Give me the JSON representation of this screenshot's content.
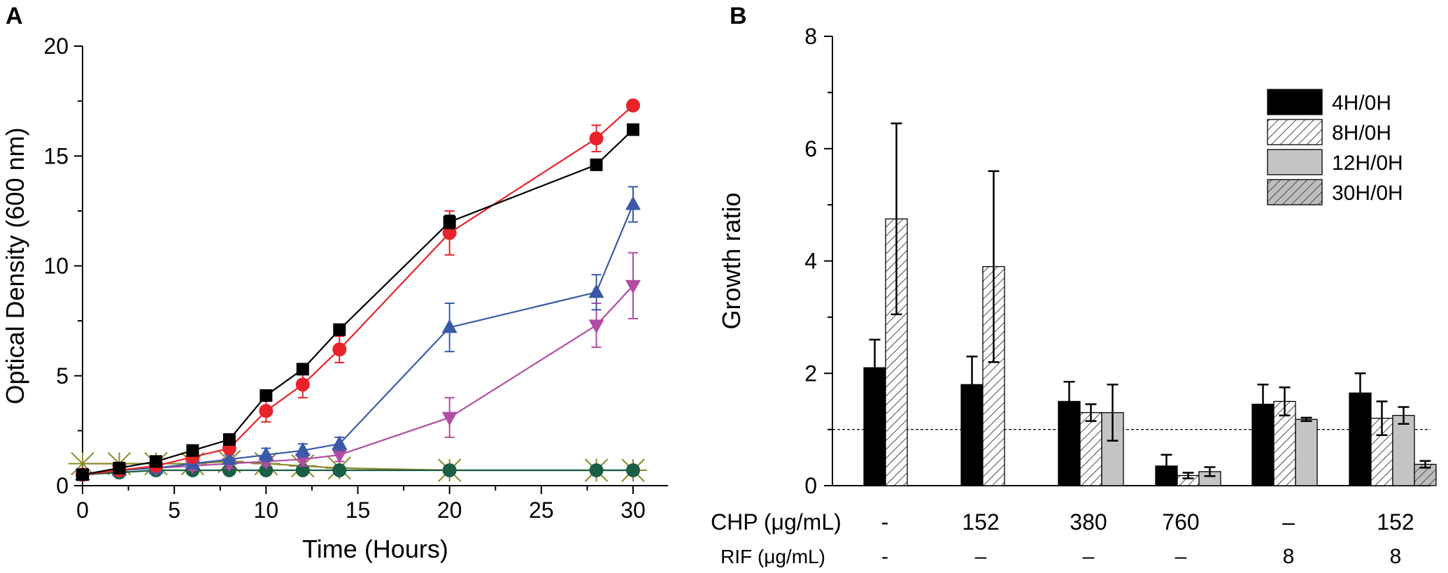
{
  "chart_data": [
    {
      "panel": "A",
      "type": "line",
      "xlabel": "Time (Hours)",
      "ylabel": "Optical Density (600 nm)",
      "xlim": [
        0,
        32
      ],
      "ylim": [
        0,
        20
      ],
      "xticks": [
        0,
        5,
        10,
        15,
        20,
        25,
        30
      ],
      "yticks": [
        0,
        5,
        10,
        15,
        20
      ],
      "series": [
        {
          "name": "black-squares",
          "color": "#000000",
          "marker": "square",
          "x": [
            0,
            2,
            4,
            6,
            8,
            10,
            12,
            14,
            20,
            28,
            30
          ],
          "y": [
            0.5,
            0.8,
            1.1,
            1.6,
            2.1,
            4.1,
            5.3,
            7.1,
            12.0,
            14.6,
            16.2
          ],
          "err": [
            0,
            0,
            0,
            0,
            0,
            0,
            0,
            0,
            0.3,
            0,
            0
          ]
        },
        {
          "name": "red-circles",
          "color": "#e8232a",
          "marker": "circle",
          "x": [
            0,
            2,
            4,
            6,
            8,
            10,
            12,
            14,
            20,
            28,
            30
          ],
          "y": [
            0.5,
            0.7,
            0.9,
            1.3,
            1.7,
            3.4,
            4.6,
            6.2,
            11.5,
            15.8,
            17.3
          ],
          "err": [
            0,
            0,
            0,
            0.2,
            0.2,
            0.5,
            0.6,
            0.6,
            1.0,
            0.6,
            0
          ]
        },
        {
          "name": "blue-up-triangles",
          "color": "#3a5aa8",
          "marker": "triangle-up",
          "x": [
            0,
            2,
            4,
            6,
            8,
            10,
            12,
            14,
            20,
            28,
            30
          ],
          "y": [
            0.5,
            0.7,
            0.8,
            1.0,
            1.2,
            1.4,
            1.6,
            1.9,
            7.2,
            8.8,
            12.8
          ],
          "err": [
            0,
            0,
            0,
            0.2,
            0.2,
            0.3,
            0.3,
            0.3,
            1.1,
            0.8,
            0.8
          ]
        },
        {
          "name": "magenta-down-triangles",
          "color": "#b24ca5",
          "marker": "triangle-down",
          "x": [
            0,
            2,
            4,
            6,
            8,
            10,
            12,
            14,
            20,
            28,
            30
          ],
          "y": [
            0.5,
            0.7,
            0.8,
            0.9,
            1.0,
            1.1,
            1.2,
            1.4,
            3.1,
            7.3,
            9.1
          ],
          "err": [
            0,
            0,
            0,
            0.2,
            0.2,
            0.2,
            0.3,
            0.3,
            0.9,
            1.0,
            1.5
          ]
        },
        {
          "name": "olive-stars",
          "color": "#8a8a2a",
          "marker": "star",
          "x": [
            0,
            2,
            4,
            6,
            8,
            10,
            12,
            14,
            20,
            28,
            30
          ],
          "y": [
            1.0,
            1.0,
            1.0,
            1.0,
            1.1,
            1.0,
            0.9,
            0.8,
            0.7,
            0.7,
            0.7
          ],
          "err": [
            0,
            0,
            0,
            0,
            0.2,
            0,
            0,
            0,
            0,
            0,
            0
          ]
        },
        {
          "name": "green-circles",
          "color": "#1a5e45",
          "marker": "circle",
          "x": [
            0,
            2,
            4,
            6,
            8,
            10,
            12,
            14,
            20,
            28,
            30
          ],
          "y": [
            0.5,
            0.6,
            0.7,
            0.7,
            0.7,
            0.7,
            0.7,
            0.7,
            0.7,
            0.7,
            0.7
          ],
          "err": [
            0,
            0,
            0,
            0,
            0,
            0,
            0,
            0,
            0,
            0,
            0
          ]
        }
      ]
    },
    {
      "panel": "B",
      "type": "bar",
      "ylabel": "Growth ratio",
      "ylim": [
        0,
        8
      ],
      "yticks": [
        0,
        2,
        4,
        6,
        8
      ],
      "reference_line": 1.0,
      "row_labels": {
        "chp": "CHP (μg/mL)",
        "rif": "RIF (μg/mL)"
      },
      "groups": [
        {
          "chp": "-",
          "rif": "-"
        },
        {
          "chp": "152",
          "rif": "–"
        },
        {
          "chp": "380",
          "rif": "–"
        },
        {
          "chp": "760",
          "rif": "–"
        },
        {
          "chp": "–",
          "rif": "8"
        },
        {
          "chp": "152",
          "rif": "8"
        }
      ],
      "series": [
        {
          "name": "4H/0H",
          "values": [
            2.1,
            1.8,
            1.5,
            0.35,
            1.45,
            1.65
          ],
          "err": [
            0.5,
            0.5,
            0.35,
            0.2,
            0.35,
            0.35
          ]
        },
        {
          "name": "8H/0H",
          "values": [
            4.75,
            3.9,
            1.3,
            0.18,
            1.5,
            1.2
          ],
          "err": [
            1.7,
            1.7,
            0.15,
            0.05,
            0.25,
            0.3
          ]
        },
        {
          "name": "12H/0H",
          "values": [
            null,
            null,
            1.3,
            0.25,
            1.18,
            1.25
          ],
          "err": [
            null,
            null,
            0.5,
            0.08,
            0.03,
            0.15
          ]
        },
        {
          "name": "30H/0H",
          "values": [
            null,
            null,
            null,
            null,
            null,
            0.38
          ],
          "err": [
            null,
            null,
            null,
            null,
            null,
            0.06
          ]
        }
      ]
    }
  ]
}
